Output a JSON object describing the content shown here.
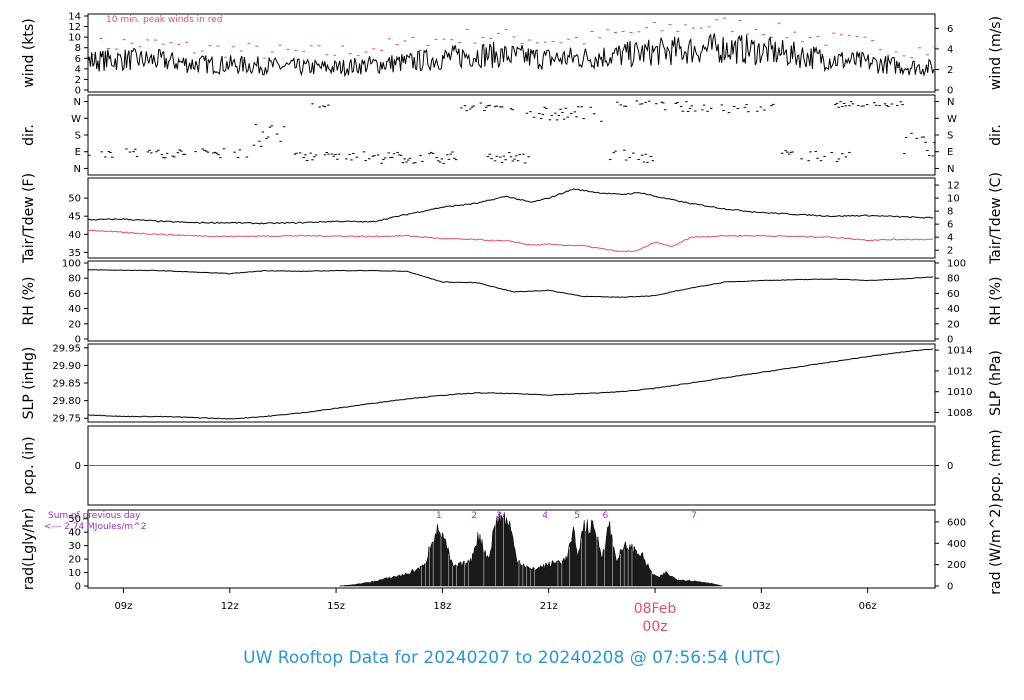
{
  "footer_title": "UW Rooftop Data for 20240207  to  20240208 @ 07:56:54  (UTC)",
  "peak_note": "10 min. peak winds in red",
  "sum_note_1": "Sum of previous day",
  "sum_note_2": "<--- 2.74 MJoules/m^2",
  "date_label": "08Feb",
  "date_label_hour": "00z",
  "colors": {
    "peak": "#e0506e",
    "dew": "#e0506e",
    "pcp": "#4a6fc0",
    "note": "#9b30d0",
    "date": "#e0506e",
    "title": "#2a97d4"
  },
  "chart_data": {
    "type": "line",
    "x_ticks": [
      "09z",
      "12z",
      "15z",
      "18z",
      "21z",
      "",
      "03z",
      "06z"
    ],
    "x_range_hours": [
      8.0,
      31.9
    ],
    "panels": [
      {
        "id": "wind",
        "ylabel_left": "wind (kts)",
        "ylabel_right": "wind (m/s)",
        "ylim": [
          0,
          14
        ],
        "yticks_left": [
          "0",
          "2",
          "4",
          "6",
          "8",
          "10",
          "12",
          "14"
        ],
        "yticks_right": [
          "0",
          "2",
          "4",
          "6"
        ],
        "series": [
          {
            "values": [
              [
                8,
                5.5
              ],
              [
                9,
                5.8
              ],
              [
                10,
                5.6
              ],
              [
                11,
                4.9
              ],
              [
                12,
                4.8
              ],
              [
                13,
                4.6
              ],
              [
                14,
                4.3
              ],
              [
                15,
                4.2
              ],
              [
                16,
                4.8
              ],
              [
                17,
                5.2
              ],
              [
                18,
                6.0
              ],
              [
                19,
                6.8
              ],
              [
                20,
                6.4
              ],
              [
                21,
                5.9
              ],
              [
                22,
                6.1
              ],
              [
                23,
                6.6
              ],
              [
                24,
                7.2
              ],
              [
                25,
                7.6
              ],
              [
                26,
                8.0
              ],
              [
                27,
                7.4
              ],
              [
                28,
                6.6
              ],
              [
                29,
                5.8
              ],
              [
                30,
                5.2
              ],
              [
                31,
                4.5
              ],
              [
                31.9,
                4.2
              ]
            ]
          },
          {
            "values": [
              [
                8,
                8.2
              ],
              [
                9,
                8.8
              ],
              [
                10,
                8.6
              ],
              [
                11,
                7.8
              ],
              [
                12,
                7.6
              ],
              [
                13,
                7.2
              ],
              [
                14,
                7.0
              ],
              [
                15,
                7.1
              ],
              [
                16,
                8.0
              ],
              [
                17,
                8.6
              ],
              [
                18,
                9.6
              ],
              [
                19,
                10.4
              ],
              [
                20,
                10.0
              ],
              [
                21,
                9.4
              ],
              [
                22,
                9.6
              ],
              [
                23,
                10.6
              ],
              [
                24,
                11.4
              ],
              [
                25,
                12.2
              ],
              [
                26,
                12.4
              ],
              [
                27,
                11.6
              ],
              [
                28,
                10.4
              ],
              [
                29,
                9.4
              ],
              [
                30,
                8.6
              ],
              [
                31,
                7.8
              ],
              [
                31.9,
                7.4
              ]
            ]
          }
        ]
      },
      {
        "id": "dir",
        "ylabel_left": "dir.",
        "ylabel_right": "dir.",
        "yticks_left": [
          "N",
          "E",
          "S",
          "W",
          "N"
        ],
        "yticks_right": [
          "N",
          "E",
          "S",
          "W",
          "N"
        ]
      },
      {
        "id": "temp",
        "ylabel_left": "Tair/Tdew (F)",
        "ylabel_right": "Tair/Tdew (C)",
        "ylim": [
          34,
          55
        ],
        "yticks_left": [
          "35",
          "40",
          "45",
          "50"
        ],
        "yticks_right": [
          "2",
          "4",
          "6",
          "8",
          "10",
          "12"
        ],
        "series": [
          {
            "values": [
              [
                8,
                44
              ],
              [
                9,
                44.2
              ],
              [
                10,
                43.6
              ],
              [
                11,
                43.2
              ],
              [
                12,
                43.2
              ],
              [
                13,
                43.0
              ],
              [
                14,
                43.2
              ],
              [
                15,
                43.6
              ],
              [
                16,
                43.4
              ],
              [
                17,
                45.5
              ],
              [
                18,
                47.5
              ],
              [
                19,
                48.6
              ],
              [
                19.8,
                50.5
              ],
              [
                20.5,
                48.8
              ],
              [
                21,
                50
              ],
              [
                21.7,
                52.5
              ],
              [
                22.4,
                51.5
              ],
              [
                23,
                51
              ],
              [
                23.6,
                51.5
              ],
              [
                24,
                50.5
              ],
              [
                25,
                48.5
              ],
              [
                26,
                47
              ],
              [
                27,
                46
              ],
              [
                28,
                45.5
              ],
              [
                29,
                45
              ],
              [
                30,
                45.2
              ],
              [
                31,
                44.8
              ],
              [
                31.9,
                44.5
              ]
            ]
          },
          {
            "values": [
              [
                8,
                41.2
              ],
              [
                9,
                40.5
              ],
              [
                10,
                40
              ],
              [
                11,
                39.6
              ],
              [
                12,
                39.4
              ],
              [
                13,
                39.5
              ],
              [
                14,
                39.6
              ],
              [
                15,
                39.5
              ],
              [
                16,
                39.4
              ],
              [
                17,
                39.6
              ],
              [
                18,
                38.8
              ],
              [
                19,
                38.5
              ],
              [
                20,
                38
              ],
              [
                20.5,
                37
              ],
              [
                21,
                37.2
              ],
              [
                22,
                36.8
              ],
              [
                23,
                35.2
              ],
              [
                23.5,
                35.4
              ],
              [
                24,
                37.8
              ],
              [
                24.5,
                36.6
              ],
              [
                25,
                39.2
              ],
              [
                26,
                39.6
              ],
              [
                27,
                39.6
              ],
              [
                28,
                39.4
              ],
              [
                29,
                39.2
              ],
              [
                30,
                38.4
              ],
              [
                31,
                38.6
              ],
              [
                31.9,
                38.6
              ]
            ]
          }
        ]
      },
      {
        "id": "rh",
        "ylabel_left": "RH (%)",
        "ylabel_right": "RH (%)",
        "ylim": [
          0,
          100
        ],
        "yticks_left": [
          "0",
          "20",
          "40",
          "60",
          "80",
          "100"
        ],
        "yticks_right": [
          "0",
          "20",
          "40",
          "60",
          "80",
          "100"
        ],
        "series": [
          {
            "values": [
              [
                8,
                91
              ],
              [
                10,
                90
              ],
              [
                11,
                88
              ],
              [
                12,
                86
              ],
              [
                13,
                90
              ],
              [
                14,
                89
              ],
              [
                15,
                90
              ],
              [
                16,
                90
              ],
              [
                17,
                89
              ],
              [
                18,
                75
              ],
              [
                19,
                74
              ],
              [
                20,
                62
              ],
              [
                21,
                64
              ],
              [
                22,
                56
              ],
              [
                23,
                55
              ],
              [
                24,
                57
              ],
              [
                25,
                67
              ],
              [
                26,
                75
              ],
              [
                27,
                77
              ],
              [
                28,
                78
              ],
              [
                29,
                79
              ],
              [
                30,
                77
              ],
              [
                31,
                79
              ],
              [
                31.9,
                82
              ]
            ]
          }
        ]
      },
      {
        "id": "slp",
        "ylabel_left": "SLP (inHg)",
        "ylabel_right": "SLP (hPa)",
        "ylim": [
          29.745,
          29.955
        ],
        "yticks_left": [
          "29.75",
          "29.80",
          "29.85",
          "29.90",
          "29.95"
        ],
        "yticks_right": [
          "1008",
          "1010",
          "1012",
          "1014"
        ],
        "series": [
          {
            "values": [
              [
                8,
                29.76
              ],
              [
                9,
                29.755
              ],
              [
                10,
                29.755
              ],
              [
                11,
                29.752
              ],
              [
                12,
                29.748
              ],
              [
                13,
                29.755
              ],
              [
                14,
                29.765
              ],
              [
                15,
                29.778
              ],
              [
                16,
                29.792
              ],
              [
                17,
                29.805
              ],
              [
                18,
                29.815
              ],
              [
                19,
                29.822
              ],
              [
                20,
                29.82
              ],
              [
                21,
                29.816
              ],
              [
                22,
                29.82
              ],
              [
                23,
                29.825
              ],
              [
                24,
                29.835
              ],
              [
                25,
                29.85
              ],
              [
                26,
                29.865
              ],
              [
                27,
                29.88
              ],
              [
                28,
                29.895
              ],
              [
                29,
                29.91
              ],
              [
                30,
                29.925
              ],
              [
                31,
                29.938
              ],
              [
                31.9,
                29.948
              ]
            ]
          }
        ]
      },
      {
        "id": "pcp",
        "ylabel_left": "pcp. (in)",
        "ylabel_right": "pcp. (mm)",
        "yticks_left": [
          "0"
        ],
        "yticks_right": [
          "0"
        ],
        "series": [
          {
            "values": [
              [
                8,
                0
              ],
              [
                31.9,
                0
              ]
            ]
          }
        ]
      },
      {
        "id": "rad",
        "ylabel_left": "rad(Lgly/hr)",
        "ylabel_right": "rad (W/m^2)",
        "ylim": [
          0,
          55
        ],
        "yticks_left": [
          "0",
          "10",
          "20",
          "30",
          "40",
          "50"
        ],
        "yticks_right": [
          "0",
          "200",
          "400",
          "600"
        ],
        "markers": [
          "1",
          "2",
          "3",
          "4",
          "5",
          "6",
          "7"
        ],
        "marker_hours": [
          17.9,
          18.9,
          19.6,
          20.9,
          21.8,
          22.6,
          25.1
        ],
        "series": [
          {
            "values": [
              [
                15.1,
                0
              ],
              [
                15.5,
                1
              ],
              [
                16,
                3
              ],
              [
                16.5,
                6
              ],
              [
                17,
                9
              ],
              [
                17.5,
                15
              ],
              [
                17.7,
                35
              ],
              [
                17.9,
                42
              ],
              [
                18,
                38
              ],
              [
                18.3,
                14
              ],
              [
                18.8,
                18
              ],
              [
                19,
                38
              ],
              [
                19.3,
                20
              ],
              [
                19.5,
                48
              ],
              [
                19.7,
                52
              ],
              [
                19.9,
                45
              ],
              [
                20.1,
                20
              ],
              [
                20.5,
                12
              ],
              [
                21,
                16
              ],
              [
                21.5,
                20
              ],
              [
                21.7,
                40
              ],
              [
                21.8,
                22
              ],
              [
                22,
                45
              ],
              [
                22.3,
                42
              ],
              [
                22.5,
                22
              ],
              [
                22.7,
                46
              ],
              [
                22.9,
                20
              ],
              [
                23.2,
                30
              ],
              [
                23.6,
                24
              ],
              [
                23.9,
                10
              ],
              [
                24.1,
                6
              ],
              [
                24.3,
                10
              ],
              [
                24.6,
                5
              ],
              [
                25,
                4
              ],
              [
                25.3,
                3
              ],
              [
                25.6,
                2
              ],
              [
                25.9,
                0
              ]
            ]
          }
        ]
      }
    ]
  }
}
